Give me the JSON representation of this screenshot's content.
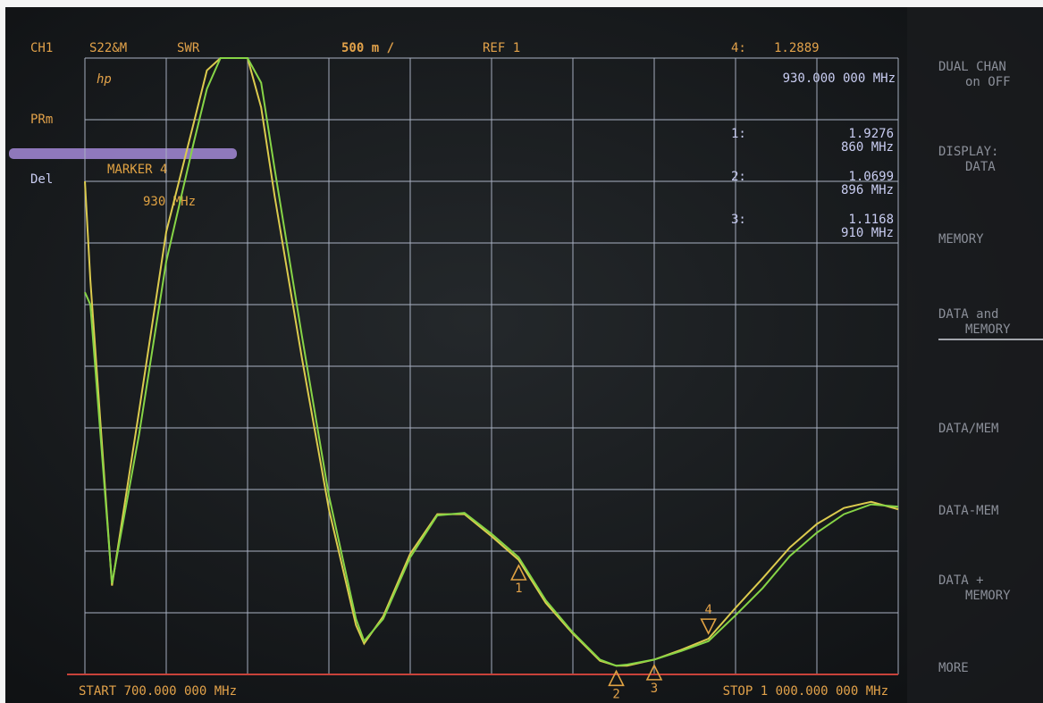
{
  "screen": {
    "channel": "CH1",
    "param": "S22&M",
    "format": "SWR",
    "scale": "500 m /",
    "ref": "REF 1",
    "logo": "hp",
    "left_labels": [
      "PRm",
      "Del"
    ],
    "softkeys": [
      [
        "DUAL CHAN",
        "on OFF"
      ],
      [
        "DISPLAY:",
        "DATA"
      ],
      [
        "MEMORY"
      ],
      [
        "DATA and",
        "MEMORY"
      ],
      [
        "DATA/MEM"
      ],
      [
        "DATA-MEM"
      ],
      [
        "DATA +",
        "MEMORY"
      ],
      [
        "MORE"
      ]
    ],
    "marker_title": [
      "MARKER 4",
      "930 MHz"
    ],
    "start": "START 700.000 000 MHz",
    "stop": "STOP 1 000.000 000 MHz",
    "active_marker": {
      "label": "4:",
      "freq": "930.000 000 MHz"
    }
  },
  "chart_data": {
    "type": "line",
    "x": [
      700,
      702,
      710,
      720,
      730,
      740,
      745,
      750,
      760,
      765,
      770,
      780,
      790,
      800,
      803,
      810,
      820,
      830,
      840,
      850,
      860,
      870,
      880,
      890,
      896,
      900,
      910,
      920,
      930,
      940,
      950,
      960,
      970,
      980,
      990,
      1000
    ],
    "series": [
      {
        "name": "DATA",
        "color": "#dccb4e",
        "values": [
          5.0,
          4.2,
          1.72,
          3.14,
          4.59,
          5.46,
          5.9,
          6.0,
          6.0,
          5.6,
          4.88,
          3.57,
          2.34,
          1.4,
          1.25,
          1.47,
          1.98,
          2.3,
          2.3,
          2.12,
          1.93,
          1.58,
          1.33,
          1.11,
          1.07,
          1.07,
          1.12,
          1.2,
          1.29,
          1.54,
          1.78,
          2.03,
          2.22,
          2.35,
          2.4,
          2.34
        ]
      },
      {
        "name": "MEMORY",
        "color": "#86d446",
        "values": [
          4.1,
          4.0,
          1.74,
          2.95,
          4.35,
          5.3,
          5.75,
          6.0,
          6.0,
          5.8,
          5.1,
          3.75,
          2.45,
          1.45,
          1.27,
          1.45,
          1.95,
          2.29,
          2.31,
          2.14,
          1.95,
          1.6,
          1.34,
          1.12,
          1.07,
          1.08,
          1.12,
          1.19,
          1.27,
          1.48,
          1.7,
          1.96,
          2.15,
          2.3,
          2.38,
          2.36
        ]
      }
    ],
    "markers": [
      {
        "name": "1",
        "label": "1:",
        "x": 860,
        "y": 1.9276,
        "x_label": "860 MHz"
      },
      {
        "name": "2",
        "label": "2:",
        "x": 896,
        "y": 1.0699,
        "x_label": "896 MHz"
      },
      {
        "name": "3",
        "label": "3:",
        "x": 910,
        "y": 1.1168,
        "x_label": "910 MHz"
      },
      {
        "name": "4",
        "label": "4:",
        "x": 930,
        "y": 1.2889,
        "x_label": "930 MHz"
      }
    ],
    "xlim": [
      700,
      1000
    ],
    "ylim": [
      1,
      6
    ],
    "xticks": [
      700,
      730,
      760,
      790,
      820,
      850,
      880,
      910,
      940,
      970,
      1000
    ],
    "yticks": [
      1,
      1.5,
      2,
      2.5,
      3,
      3.5,
      4,
      4.5,
      5,
      5.5,
      6
    ],
    "grid": true,
    "grid_color": "#aab2c4",
    "ref_color": "#c8423a"
  }
}
